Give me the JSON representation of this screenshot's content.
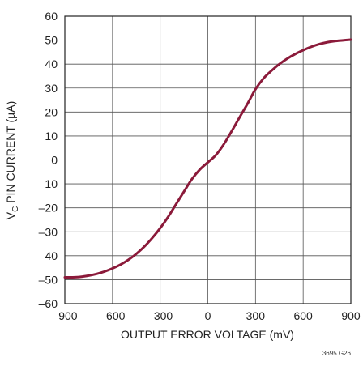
{
  "chart_data": {
    "type": "line",
    "xlabel": "OUTPUT ERROR VOLTAGE (mV)",
    "ylabel": {
      "main": "V",
      "sub": "C",
      "rest": " PIN CURRENT (µA)"
    },
    "xlim": [
      -900,
      900
    ],
    "ylim": [
      -60,
      60
    ],
    "x_ticks": [
      -900,
      -600,
      -300,
      0,
      300,
      600,
      900
    ],
    "y_ticks": [
      -60,
      -50,
      -40,
      -30,
      -20,
      -10,
      0,
      10,
      20,
      30,
      40,
      50,
      60
    ],
    "x_tick_labels": [
      "–900",
      "–600",
      "–300",
      "0",
      "300",
      "600",
      "900"
    ],
    "y_tick_labels": [
      "–60",
      "–50",
      "–40",
      "–30",
      "–20",
      "–10",
      "0",
      "10",
      "20",
      "30",
      "40",
      "50",
      "60"
    ],
    "grid": true,
    "series": [
      {
        "color": "#8b1a3a",
        "x": [
          -900,
          -850,
          -800,
          -750,
          -700,
          -650,
          -600,
          -550,
          -500,
          -450,
          -400,
          -350,
          -300,
          -250,
          -200,
          -150,
          -100,
          -50,
          0,
          50,
          100,
          150,
          200,
          250,
          300,
          350,
          400,
          450,
          500,
          550,
          600,
          650,
          700,
          750,
          800,
          850,
          900
        ],
        "y": [
          -49,
          -49,
          -48.8,
          -48.3,
          -47.6,
          -46.6,
          -45.3,
          -43.7,
          -41.7,
          -39.2,
          -36.2,
          -32.6,
          -28.5,
          -23.8,
          -18.5,
          -13.2,
          -8,
          -4,
          -1,
          2,
          6.5,
          12,
          17.8,
          23.5,
          29.5,
          34,
          37.2,
          40,
          42.3,
          44.2,
          45.8,
          47.2,
          48.3,
          49.1,
          49.6,
          49.9,
          50.2
        ]
      }
    ]
  },
  "footnote": "3695 G26"
}
